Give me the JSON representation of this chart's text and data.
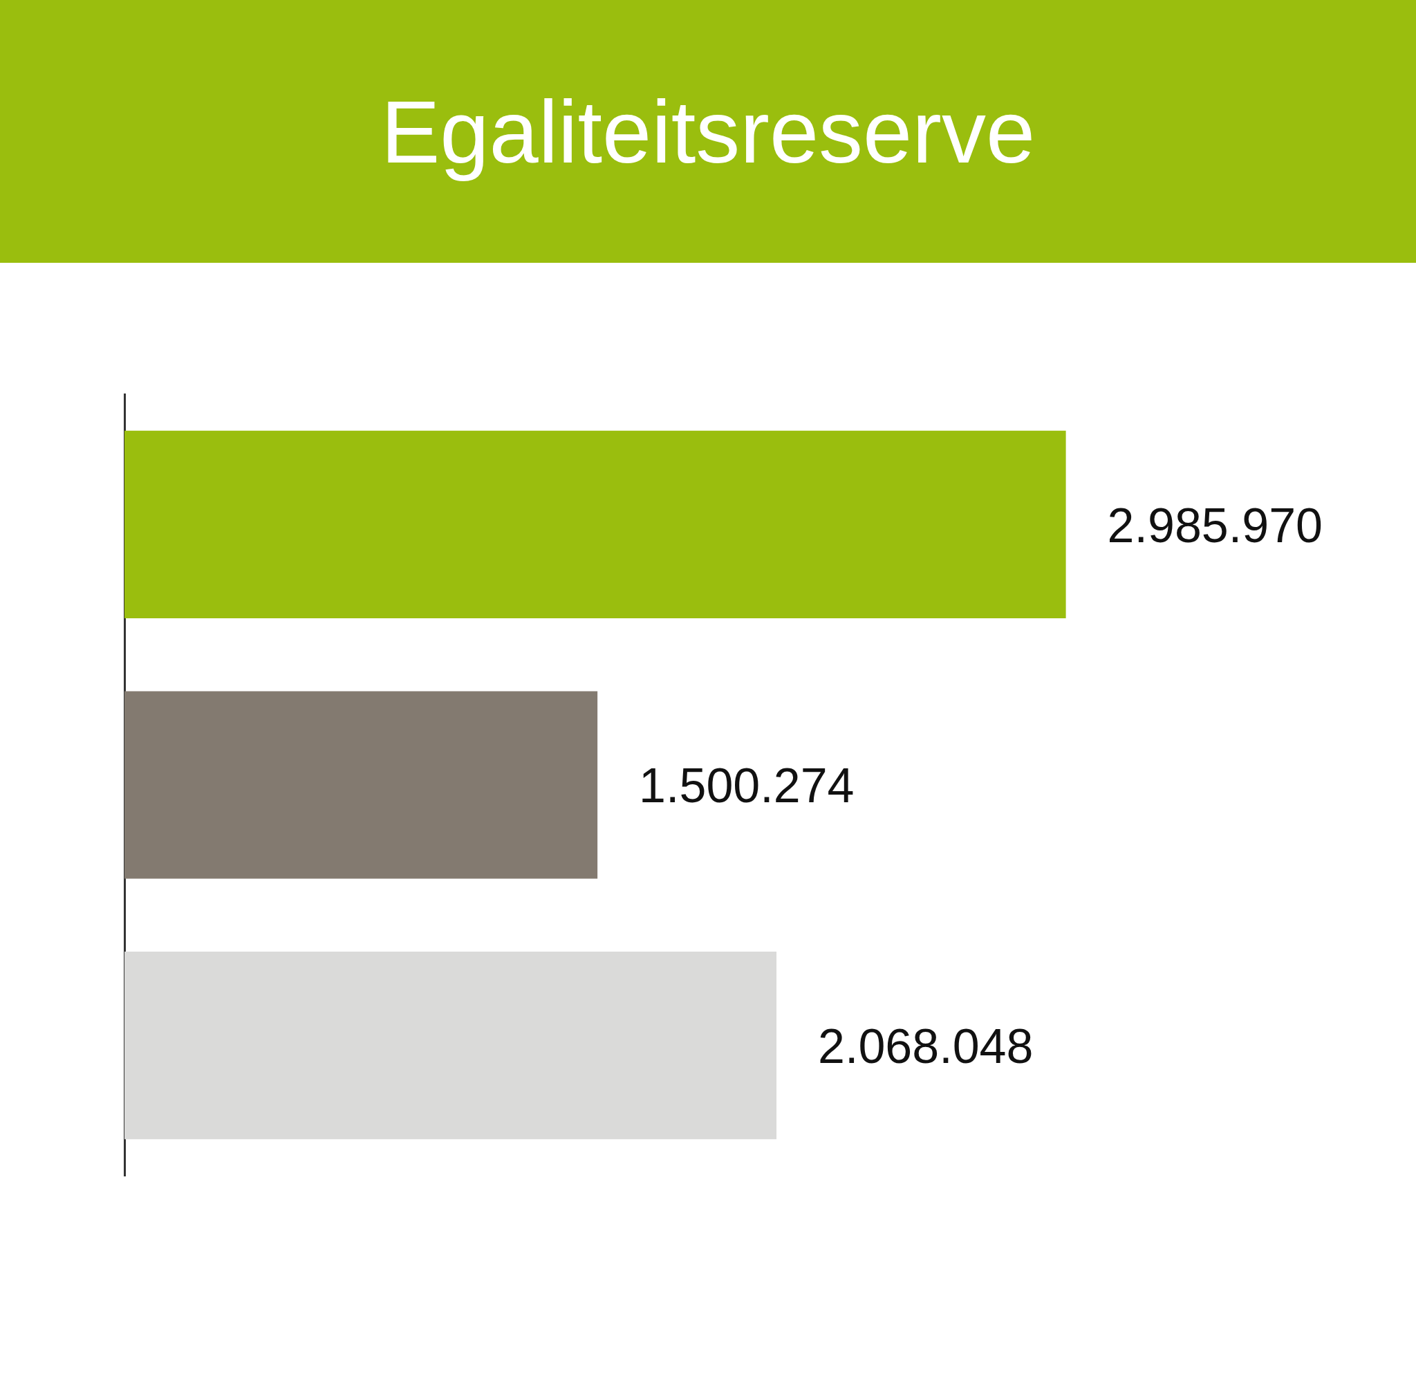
{
  "chart_data": {
    "type": "bar",
    "orientation": "horizontal",
    "title": "Egaliteitsreserve",
    "categories": [
      null,
      null,
      null
    ],
    "values": [
      2985970,
      1500274,
      2068048
    ],
    "colors": [
      "#9abe0e",
      "#837a70",
      "#dadad9"
    ],
    "value_labels": [
      "2.985.970",
      "1.500.274",
      "2.068.048"
    ],
    "grid": false,
    "legend": false
  }
}
